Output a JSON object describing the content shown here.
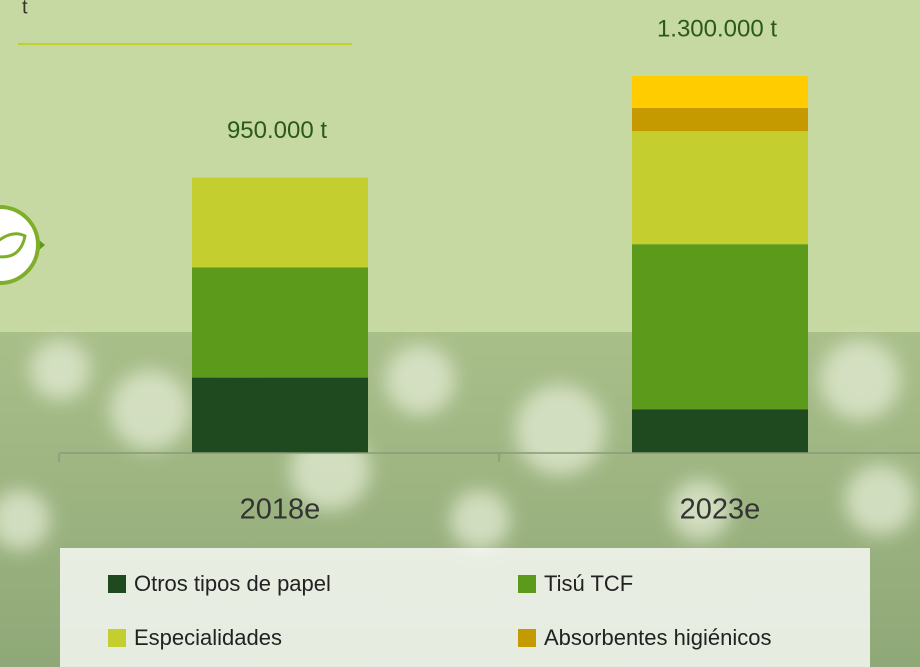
{
  "chart_data": {
    "type": "stacked_bar",
    "subtitle": "t",
    "categories": [
      "2018e",
      "2023e"
    ],
    "series": [
      {
        "name": "Otros tipos de papel",
        "color": "#1f4a1f",
        "values": [
          260000,
          150000
        ]
      },
      {
        "name": "Tisú TCF",
        "color": "#5b9a1b",
        "values": [
          380000,
          570000
        ]
      },
      {
        "name": "Especialidades",
        "color": "#c4cf2f",
        "values": [
          310000,
          390000
        ]
      },
      {
        "name": "Absorbentes higiénicos",
        "color": "#c49a00",
        "values": [
          null,
          80000
        ]
      },
      {
        "name": null,
        "color": "#ffcc00",
        "values": [
          null,
          110000
        ]
      }
    ],
    "totals": {
      "values": [
        950000,
        1300000
      ],
      "value_labels": [
        "950.000 t",
        "1.300.000 t"
      ]
    }
  }
}
